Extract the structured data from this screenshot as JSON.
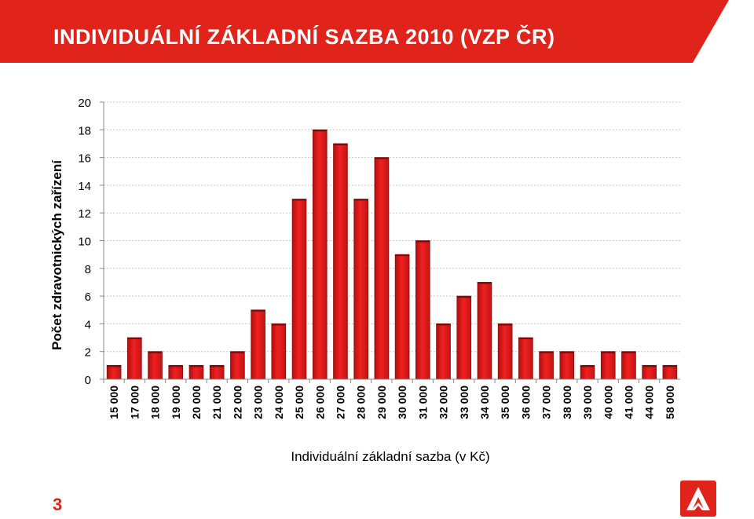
{
  "header": {
    "title": "INDIVIDUÁLNÍ ZÁKLADNÍ SAZBA 2010 (VZP ČR)"
  },
  "footer": {
    "page_number": "3"
  },
  "colors": {
    "accent": "#e0241b",
    "bar_fill": "#ee1c1c",
    "bar_dark": "#b30f0f",
    "grid": "#c8c8c8"
  },
  "chart_data": {
    "type": "bar",
    "title": "",
    "xlabel": "Individuální základní sazba (v Kč)",
    "ylabel": "Počet zdravotnických zařízení",
    "categories": [
      "15 000",
      "17 000",
      "18 000",
      "19 000",
      "20 000",
      "21 000",
      "22 000",
      "23 000",
      "24 000",
      "25 000",
      "26 000",
      "27 000",
      "28 000",
      "29 000",
      "30 000",
      "31 000",
      "32 000",
      "33 000",
      "34 000",
      "35 000",
      "36 000",
      "37 000",
      "38 000",
      "39 000",
      "40 000",
      "41 000",
      "44 000",
      "58 000"
    ],
    "values": [
      1,
      3,
      2,
      1,
      1,
      1,
      2,
      5,
      4,
      13,
      18,
      17,
      13,
      16,
      9,
      10,
      4,
      6,
      7,
      4,
      3,
      2,
      2,
      1,
      2,
      2,
      1,
      1
    ],
    "yticks": [
      "0",
      "2",
      "4",
      "6",
      "8",
      "10",
      "12",
      "14",
      "16",
      "18",
      "20"
    ],
    "ylim": [
      0,
      20
    ],
    "grid": "horizontal dotted",
    "legend": "none"
  }
}
